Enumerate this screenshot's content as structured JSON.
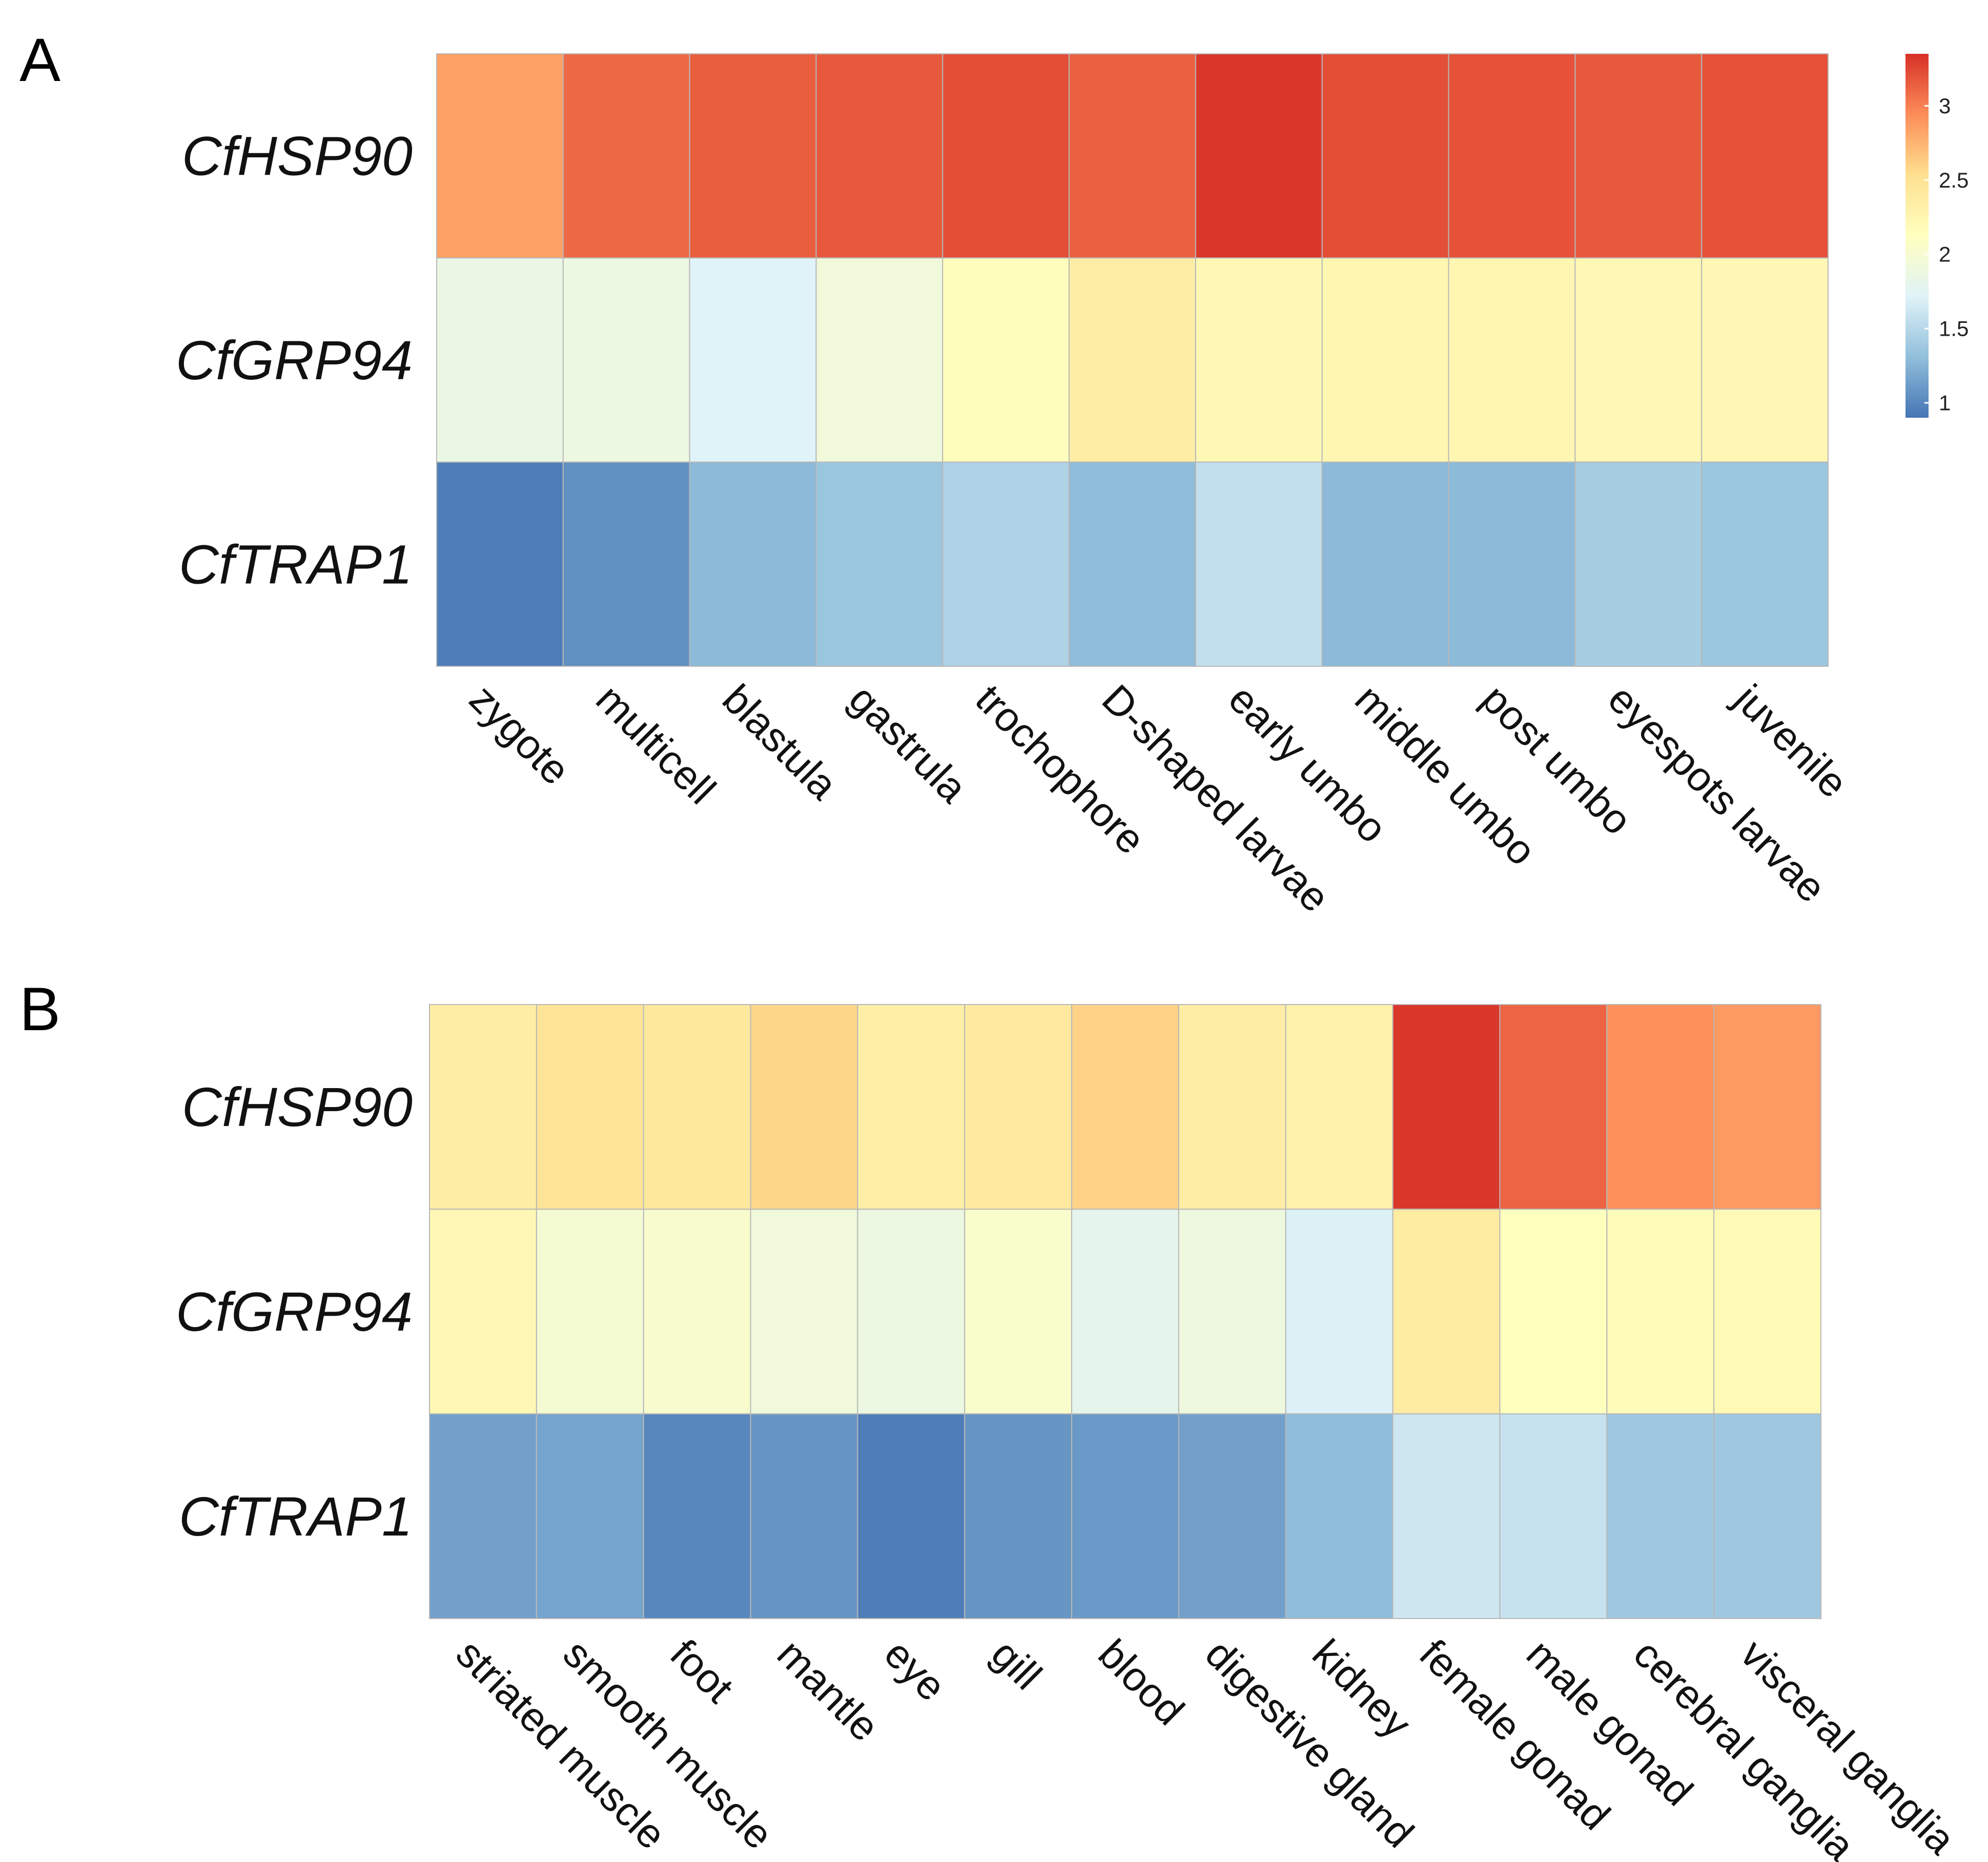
{
  "colors": {
    "low": "#4575b4",
    "mid": "#ffffbf",
    "high": "#d73027",
    "stops": [
      "#4575b4",
      "#91bfdb",
      "#e0f3f8",
      "#ffffbf",
      "#fee090",
      "#fc8d59",
      "#d73027"
    ],
    "grid": "#b8b8b8"
  },
  "chart_data": [
    {
      "type": "heatmap",
      "panel": "A",
      "rows": [
        "CfHSP90",
        "CfGRP94",
        "CfTRAP1"
      ],
      "columns": [
        "zygote",
        "multicell",
        "blastula",
        "gastrula",
        "trochophore",
        "D-shaped larvae",
        "early umbo",
        "middle umbo",
        "post umbo",
        "eyespots larvae",
        "juvenile"
      ],
      "values": [
        [
          2.85,
          3.1,
          3.15,
          3.17,
          3.22,
          3.14,
          3.32,
          3.22,
          3.2,
          3.17,
          3.2
        ],
        [
          1.85,
          1.88,
          1.72,
          1.93,
          2.15,
          2.35,
          2.22,
          2.25,
          2.24,
          2.22,
          2.23
        ],
        [
          0.95,
          1.05,
          1.28,
          1.36,
          1.46,
          1.3,
          1.56,
          1.28,
          1.28,
          1.42,
          1.36
        ]
      ],
      "legend": {
        "ticks": [
          1,
          1.5,
          2,
          2.5,
          3
        ],
        "range": [
          0.9,
          3.35
        ]
      }
    },
    {
      "type": "heatmap",
      "panel": "B",
      "rows": [
        "CfHSP90",
        "CfGRP94",
        "CfTRAP1"
      ],
      "columns": [
        "striated muscle",
        "smooth muscle",
        "foot",
        "mantle",
        "eye",
        "gill",
        "blood",
        "digestive gland",
        "kidney",
        "female gonad",
        "male gonad",
        "cerebral ganglia",
        "visceral ganglia"
      ],
      "values": [
        [
          2.35,
          2.48,
          2.43,
          2.58,
          2.33,
          2.4,
          2.6,
          2.35,
          2.3,
          3.32,
          3.12,
          2.92,
          2.88
        ],
        [
          2.22,
          1.98,
          2.03,
          1.93,
          1.88,
          2.04,
          1.8,
          1.9,
          1.7,
          2.38,
          2.13,
          2.18,
          2.2
        ],
        [
          1.14,
          1.16,
          1.0,
          1.08,
          0.95,
          1.08,
          1.1,
          1.14,
          1.3,
          1.62,
          1.58,
          1.38,
          1.38
        ]
      ],
      "legend": {
        "ticks": [],
        "range": [
          0.9,
          3.35
        ]
      }
    }
  ]
}
